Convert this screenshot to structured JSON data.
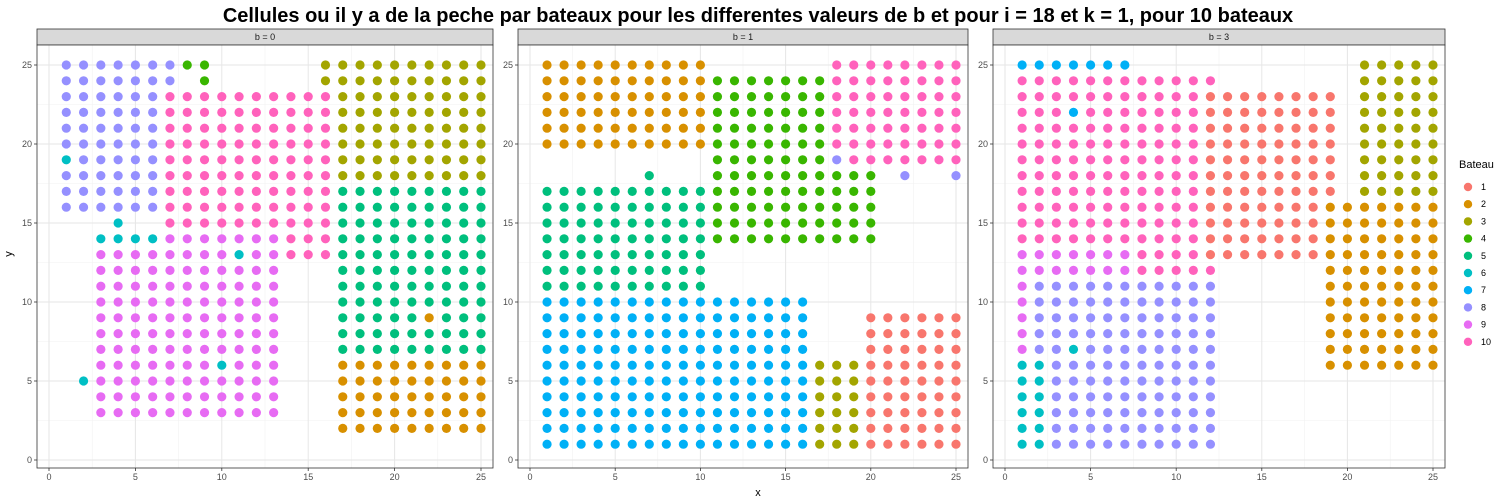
{
  "chart_data": {
    "type": "scatter",
    "title": "Cellules ou il y a de la peche par bateaux pour les differentes valeurs de b et pour i = 18 et k = 1, pour 10 bateaux",
    "xlabel": "x",
    "ylabel": "y",
    "xlim": [
      0,
      25
    ],
    "ylim": [
      0,
      25
    ],
    "xticks": [
      0,
      5,
      10,
      15,
      20,
      25
    ],
    "yticks": [
      0,
      5,
      10,
      15,
      20,
      25
    ],
    "grid": true,
    "legend": {
      "title": "Bateau",
      "placement": "right",
      "entries": [
        {
          "label": "1",
          "color": "#F8766D"
        },
        {
          "label": "2",
          "color": "#D89000"
        },
        {
          "label": "3",
          "color": "#A3A500"
        },
        {
          "label": "4",
          "color": "#39B600"
        },
        {
          "label": "5",
          "color": "#00BF7D"
        },
        {
          "label": "6",
          "color": "#00BFC4"
        },
        {
          "label": "7",
          "color": "#00B0F6"
        },
        {
          "label": "8",
          "color": "#9590FF"
        },
        {
          "label": "9",
          "color": "#E76BF3"
        },
        {
          "label": "10",
          "color": "#FF62BC"
        }
      ]
    },
    "facets": [
      {
        "label": "b = 0",
        "regions": [
          {
            "bateau": 8,
            "x": [
              1,
              7
            ],
            "y": [
              16,
              25
            ]
          },
          {
            "bateau": 10,
            "x": [
              7,
              16
            ],
            "y": [
              13,
              23
            ]
          },
          {
            "bateau": 9,
            "x": [
              3,
              13
            ],
            "y": [
              3,
              14
            ]
          },
          {
            "bateau": 3,
            "x": [
              17,
              25
            ],
            "y": [
              17,
              25
            ]
          },
          {
            "bateau": 5,
            "x": [
              17,
              25
            ],
            "y": [
              7,
              17
            ]
          },
          {
            "bateau": 2,
            "x": [
              17,
              25
            ],
            "y": [
              2,
              6
            ]
          }
        ],
        "points": [
          {
            "bateau": 4,
            "x": 8,
            "y": 25
          },
          {
            "bateau": 4,
            "x": 9,
            "y": 25
          },
          {
            "bateau": 4,
            "x": 9,
            "y": 24
          },
          {
            "bateau": 6,
            "x": 1,
            "y": 19
          },
          {
            "bateau": 6,
            "x": 2,
            "y": 5
          },
          {
            "bateau": 6,
            "x": 4,
            "y": 15
          },
          {
            "bateau": 6,
            "x": 3,
            "y": 14
          },
          {
            "bateau": 6,
            "x": 4,
            "y": 14
          },
          {
            "bateau": 6,
            "x": 5,
            "y": 14
          },
          {
            "bateau": 6,
            "x": 6,
            "y": 14
          },
          {
            "bateau": 6,
            "x": 11,
            "y": 13
          },
          {
            "bateau": 6,
            "x": 10,
            "y": 6
          },
          {
            "bateau": 3,
            "x": 16,
            "y": 25
          },
          {
            "bateau": 3,
            "x": 16,
            "y": 24
          },
          {
            "bateau": 2,
            "x": 22,
            "y": 9
          }
        ]
      },
      {
        "label": "b = 1",
        "regions": [
          {
            "bateau": 2,
            "x": [
              1,
              10
            ],
            "y": [
              20,
              25
            ]
          },
          {
            "bateau": 4,
            "x": [
              11,
              20
            ],
            "y": [
              14,
              24
            ]
          },
          {
            "bateau": 10,
            "x": [
              18,
              25
            ],
            "y": [
              19,
              25
            ]
          },
          {
            "bateau": 5,
            "x": [
              1,
              10
            ],
            "y": [
              10,
              17
            ]
          },
          {
            "bateau": 7,
            "x": [
              1,
              16
            ],
            "y": [
              1,
              10
            ]
          },
          {
            "bateau": 3,
            "x": [
              17,
              20
            ],
            "y": [
              1,
              6
            ]
          },
          {
            "bateau": 1,
            "x": [
              20,
              25
            ],
            "y": [
              1,
              9
            ]
          }
        ],
        "points": [
          {
            "bateau": 8,
            "x": 18,
            "y": 19
          },
          {
            "bateau": 8,
            "x": 22,
            "y": 18
          },
          {
            "bateau": 8,
            "x": 25,
            "y": 18
          },
          {
            "bateau": 5,
            "x": 7,
            "y": 18
          }
        ]
      },
      {
        "label": "b = 3",
        "regions": [
          {
            "bateau": 7,
            "x": [
              1,
              7
            ],
            "y": [
              17,
              25
            ]
          },
          {
            "bateau": 10,
            "x": [
              1,
              12
            ],
            "y": [
              10,
              24
            ]
          },
          {
            "bateau": 1,
            "x": [
              12,
              19
            ],
            "y": [
              13,
              23
            ]
          },
          {
            "bateau": 3,
            "x": [
              21,
              25
            ],
            "y": [
              16,
              25
            ]
          },
          {
            "bateau": 2,
            "x": [
              19,
              25
            ],
            "y": [
              6,
              16
            ]
          },
          {
            "bateau": 9,
            "x": [
              1,
              7
            ],
            "y": [
              7,
              13
            ]
          },
          {
            "bateau": 8,
            "x": [
              2,
              12
            ],
            "y": [
              1,
              11
            ]
          },
          {
            "bateau": 6,
            "x": [
              1,
              2
            ],
            "y": [
              1,
              6
            ]
          }
        ],
        "points": [
          {
            "bateau": 7,
            "x": 4,
            "y": 22
          },
          {
            "bateau": 6,
            "x": 4,
            "y": 7
          }
        ]
      }
    ]
  }
}
